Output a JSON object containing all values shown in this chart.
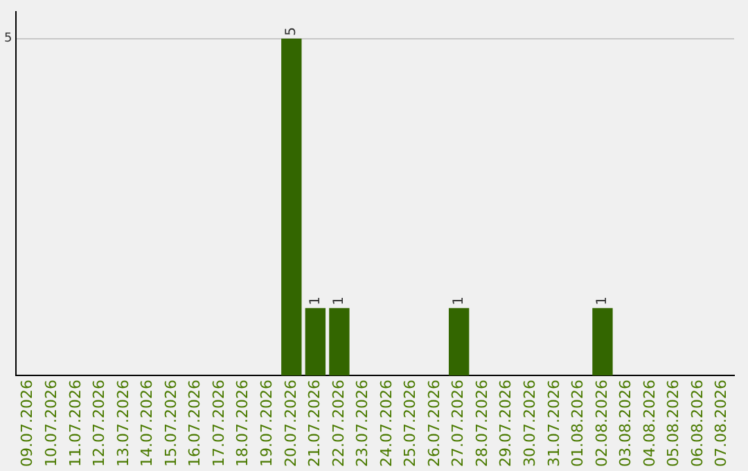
{
  "chart_data": {
    "type": "bar",
    "categories": [
      "09.07.2026",
      "10.07.2026",
      "11.07.2026",
      "12.07.2026",
      "13.07.2026",
      "14.07.2026",
      "15.07.2026",
      "16.07.2026",
      "17.07.2026",
      "18.07.2026",
      "19.07.2026",
      "20.07.2026",
      "21.07.2026",
      "22.07.2026",
      "23.07.2026",
      "24.07.2026",
      "25.07.2026",
      "26.07.2026",
      "27.07.2026",
      "28.07.2026",
      "29.07.2026",
      "30.07.2026",
      "31.07.2026",
      "01.08.2026",
      "02.08.2026",
      "03.08.2026",
      "04.08.2026",
      "05.08.2026",
      "06.08.2026",
      "07.08.2026"
    ],
    "values": [
      0,
      0,
      0,
      0,
      0,
      0,
      0,
      0,
      0,
      0,
      0,
      5,
      1,
      1,
      0,
      0,
      0,
      0,
      1,
      0,
      0,
      0,
      0,
      0,
      1,
      0,
      0,
      0,
      0,
      0
    ],
    "value_labels": [
      null,
      null,
      null,
      null,
      null,
      null,
      null,
      null,
      null,
      null,
      null,
      "5",
      "1",
      "1",
      null,
      null,
      null,
      null,
      "1",
      null,
      null,
      null,
      null,
      null,
      "1",
      null,
      null,
      null,
      null,
      null
    ],
    "color": "#336600",
    "ylim": [
      0,
      5.4
    ],
    "yticks": [
      5
    ],
    "grid": "y",
    "legend": false
  }
}
